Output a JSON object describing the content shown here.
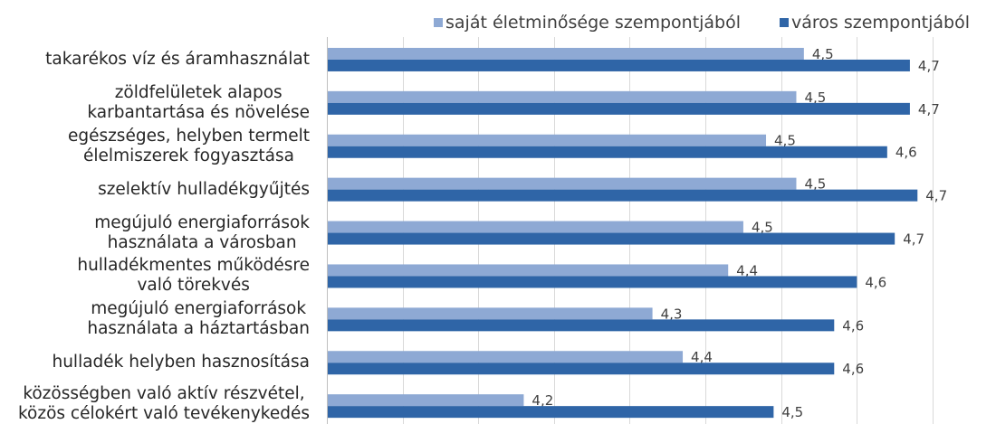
{
  "chart_data": {
    "type": "bar",
    "orientation": "horizontal",
    "categories": [
      "takarékos víz és áramhasználat",
      "zöldfelületek alapos\nkarbantartása és növelése",
      "egészséges, helyben termelt\nélelmiszerek fogyasztása",
      "szelektív hulladékgyűjtés",
      "megújuló energiaforrások\nhasználata a városban",
      "hulladékmentes működésre\nvaló törekvés",
      "megújuló energiaforrások\nhasználata a háztartásban",
      "hulladék helyben hasznosítása",
      "közösségben való aktív részvétel,\nközös célokért való tevékenykedés"
    ],
    "series": [
      {
        "name": "saját életminősége szempontjából",
        "color": "#8EA9D4",
        "values": [
          4.53,
          4.52,
          4.48,
          4.52,
          4.45,
          4.43,
          4.33,
          4.37,
          4.16
        ],
        "labels": [
          "4,5",
          "4,5",
          "4,5",
          "4,5",
          "4,5",
          "4,4",
          "4,3",
          "4,4",
          "4,2"
        ]
      },
      {
        "name": "város szempontjából",
        "color": "#2F65A7",
        "values": [
          4.67,
          4.67,
          4.64,
          4.68,
          4.65,
          4.6,
          4.57,
          4.57,
          4.49
        ],
        "labels": [
          "4,7",
          "4,7",
          "4,6",
          "4,7",
          "4,7",
          "4,6",
          "4,6",
          "4,6",
          "4,5"
        ]
      }
    ],
    "xlim": [
      3.9,
      4.7
    ],
    "grid": true,
    "legend": "top"
  }
}
